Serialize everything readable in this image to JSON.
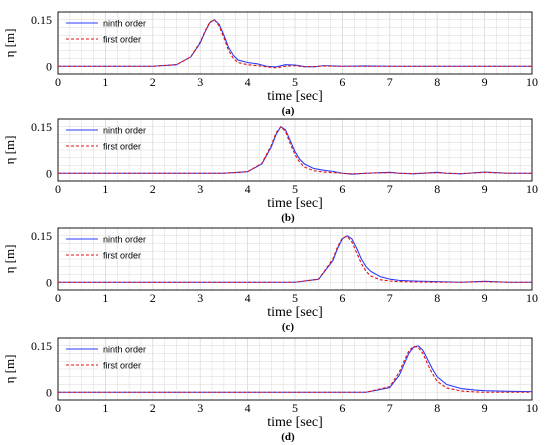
{
  "colors": {
    "ninth": "#2a3cff",
    "first": "#e01010",
    "grid": "#d9d9d9"
  },
  "chart_data": [
    {
      "type": "line",
      "caption": "(a)",
      "xlabel": "time [sec]",
      "ylabel": "η [m]",
      "xlim": [
        0,
        10
      ],
      "ylim": [
        -0.025,
        0.175
      ],
      "xticks": [
        "0",
        "1",
        "2",
        "3",
        "4",
        "5",
        "6",
        "7",
        "8",
        "9",
        "10"
      ],
      "yticks": [
        {
          "v": 0,
          "label": "0"
        },
        {
          "v": 0.15,
          "label": "0.15"
        }
      ],
      "grid": true,
      "legend_position": "top-left",
      "series": [
        {
          "name": "ninth order",
          "style": "solid",
          "x": [
            0,
            2.0,
            2.5,
            2.8,
            3.0,
            3.1,
            3.2,
            3.3,
            3.4,
            3.5,
            3.6,
            3.7,
            3.8,
            4.0,
            4.2,
            4.4,
            4.6,
            4.8,
            5.0,
            5.2,
            5.4,
            5.6,
            5.8,
            6.0,
            6.5,
            7.0,
            8.0,
            10
          ],
          "y": [
            0,
            0.0,
            0.005,
            0.03,
            0.075,
            0.11,
            0.14,
            0.15,
            0.135,
            0.1,
            0.06,
            0.035,
            0.02,
            0.012,
            0.008,
            0.0,
            -0.002,
            0.005,
            0.004,
            -0.001,
            -0.002,
            0.002,
            0.001,
            0.0,
            0.001,
            0.0,
            0.0,
            0.0
          ]
        },
        {
          "name": "first order",
          "style": "dashed",
          "x": [
            0,
            2.0,
            2.5,
            2.8,
            3.0,
            3.1,
            3.2,
            3.3,
            3.4,
            3.5,
            3.6,
            3.7,
            3.8,
            4.0,
            4.2,
            4.4,
            4.6,
            4.8,
            5.0,
            5.2,
            5.4,
            5.6,
            5.8,
            6.0,
            6.5,
            7.0,
            8.0,
            10
          ],
          "y": [
            0,
            0.0,
            0.005,
            0.03,
            0.078,
            0.112,
            0.142,
            0.15,
            0.13,
            0.092,
            0.05,
            0.025,
            0.012,
            0.005,
            0.002,
            -0.002,
            -0.005,
            0.0,
            0.002,
            -0.002,
            -0.001,
            0.001,
            0.0,
            0.0,
            0.0,
            0.0,
            0.0,
            0.0
          ]
        }
      ]
    },
    {
      "type": "line",
      "caption": "(b)",
      "xlabel": "time [sec]",
      "ylabel": "η [m]",
      "xlim": [
        0,
        10
      ],
      "ylim": [
        -0.025,
        0.175
      ],
      "xticks": [
        "0",
        "1",
        "2",
        "3",
        "4",
        "5",
        "6",
        "7",
        "8",
        "9",
        "10"
      ],
      "yticks": [
        {
          "v": 0,
          "label": "0"
        },
        {
          "v": 0.15,
          "label": "0.15"
        }
      ],
      "grid": true,
      "legend_position": "top-left",
      "series": [
        {
          "name": "ninth order",
          "style": "solid",
          "x": [
            0,
            3.5,
            4.0,
            4.3,
            4.5,
            4.6,
            4.7,
            4.8,
            4.9,
            5.0,
            5.1,
            5.2,
            5.4,
            5.6,
            5.8,
            6.0,
            6.2,
            6.5,
            7.0,
            7.2,
            7.5,
            8.0,
            8.2,
            8.5,
            9.0,
            9.5,
            10
          ],
          "y": [
            0,
            0.0,
            0.005,
            0.03,
            0.085,
            0.125,
            0.15,
            0.14,
            0.105,
            0.07,
            0.045,
            0.03,
            0.015,
            0.01,
            0.006,
            0.0,
            -0.003,
            0.0,
            0.003,
            0.0,
            -0.002,
            0.003,
            0.0,
            -0.002,
            0.004,
            0.0,
            0.0
          ]
        },
        {
          "name": "first order",
          "style": "dashed",
          "x": [
            0,
            3.5,
            4.0,
            4.3,
            4.5,
            4.6,
            4.7,
            4.8,
            4.9,
            5.0,
            5.1,
            5.2,
            5.4,
            5.6,
            5.8,
            6.0,
            6.2,
            6.5,
            7.0,
            7.2,
            7.5,
            8.0,
            8.2,
            8.5,
            9.0,
            9.5,
            10
          ],
          "y": [
            0,
            0.0,
            0.005,
            0.032,
            0.09,
            0.13,
            0.15,
            0.135,
            0.095,
            0.06,
            0.035,
            0.02,
            0.008,
            0.004,
            0.002,
            0.0,
            -0.002,
            0.0,
            0.002,
            0.0,
            -0.001,
            0.002,
            0.0,
            -0.001,
            0.003,
            0.0,
            0.0
          ]
        }
      ]
    },
    {
      "type": "line",
      "caption": "(c)",
      "xlabel": "time [sec]",
      "ylabel": "η [m]",
      "xlim": [
        0,
        10
      ],
      "ylim": [
        -0.025,
        0.175
      ],
      "xticks": [
        "0",
        "1",
        "2",
        "3",
        "4",
        "5",
        "6",
        "7",
        "8",
        "9",
        "10"
      ],
      "yticks": [
        {
          "v": 0,
          "label": "0"
        },
        {
          "v": 0.15,
          "label": "0.15"
        }
      ],
      "grid": true,
      "legend_position": "top-left",
      "series": [
        {
          "name": "ninth order",
          "style": "solid",
          "x": [
            0,
            5.0,
            5.5,
            5.8,
            5.9,
            6.0,
            6.1,
            6.2,
            6.3,
            6.4,
            6.5,
            6.6,
            6.8,
            7.0,
            7.2,
            7.5,
            8.0,
            8.5,
            9.0,
            9.2,
            9.5,
            10
          ],
          "y": [
            0,
            0.0,
            0.01,
            0.07,
            0.11,
            0.14,
            0.15,
            0.14,
            0.11,
            0.075,
            0.05,
            0.035,
            0.018,
            0.01,
            0.006,
            0.004,
            0.002,
            0.0,
            0.003,
            0.002,
            0.0,
            0.0
          ]
        },
        {
          "name": "first order",
          "style": "dashed",
          "x": [
            0,
            5.0,
            5.5,
            5.8,
            5.9,
            6.0,
            6.1,
            6.2,
            6.3,
            6.4,
            6.5,
            6.6,
            6.8,
            7.0,
            7.2,
            7.5,
            8.0,
            8.5,
            9.0,
            9.2,
            9.5,
            10
          ],
          "y": [
            0,
            0.0,
            0.01,
            0.075,
            0.115,
            0.143,
            0.148,
            0.13,
            0.095,
            0.06,
            0.035,
            0.02,
            0.008,
            0.004,
            0.002,
            0.001,
            0.0,
            0.0,
            0.002,
            0.001,
            0.0,
            0.0
          ]
        }
      ]
    },
    {
      "type": "line",
      "caption": "(d)",
      "xlabel": "time [sec]",
      "ylabel": "η [m]",
      "xlim": [
        0,
        10
      ],
      "ylim": [
        -0.025,
        0.175
      ],
      "xticks": [
        "0",
        "1",
        "2",
        "3",
        "4",
        "5",
        "6",
        "7",
        "8",
        "9",
        "10"
      ],
      "yticks": [
        {
          "v": 0,
          "label": "0"
        },
        {
          "v": 0.15,
          "label": "0.15"
        }
      ],
      "grid": true,
      "legend_position": "top-left",
      "series": [
        {
          "name": "ninth order",
          "style": "solid",
          "x": [
            0,
            6.5,
            7.0,
            7.2,
            7.3,
            7.4,
            7.5,
            7.6,
            7.7,
            7.8,
            7.9,
            8.0,
            8.2,
            8.5,
            8.8,
            9.0,
            9.5,
            10
          ],
          "y": [
            0,
            0.0,
            0.015,
            0.055,
            0.09,
            0.125,
            0.145,
            0.15,
            0.135,
            0.105,
            0.075,
            0.05,
            0.025,
            0.012,
            0.007,
            0.005,
            0.003,
            0.002
          ]
        },
        {
          "name": "first order",
          "style": "dashed",
          "x": [
            0,
            6.5,
            7.0,
            7.2,
            7.3,
            7.4,
            7.5,
            7.6,
            7.7,
            7.8,
            7.9,
            8.0,
            8.2,
            8.5,
            8.8,
            9.0,
            9.5,
            10
          ],
          "y": [
            0,
            0.0,
            0.018,
            0.065,
            0.1,
            0.133,
            0.148,
            0.145,
            0.125,
            0.09,
            0.06,
            0.035,
            0.014,
            0.004,
            0.001,
            0.0,
            0.0,
            0.0
          ]
        }
      ]
    }
  ]
}
